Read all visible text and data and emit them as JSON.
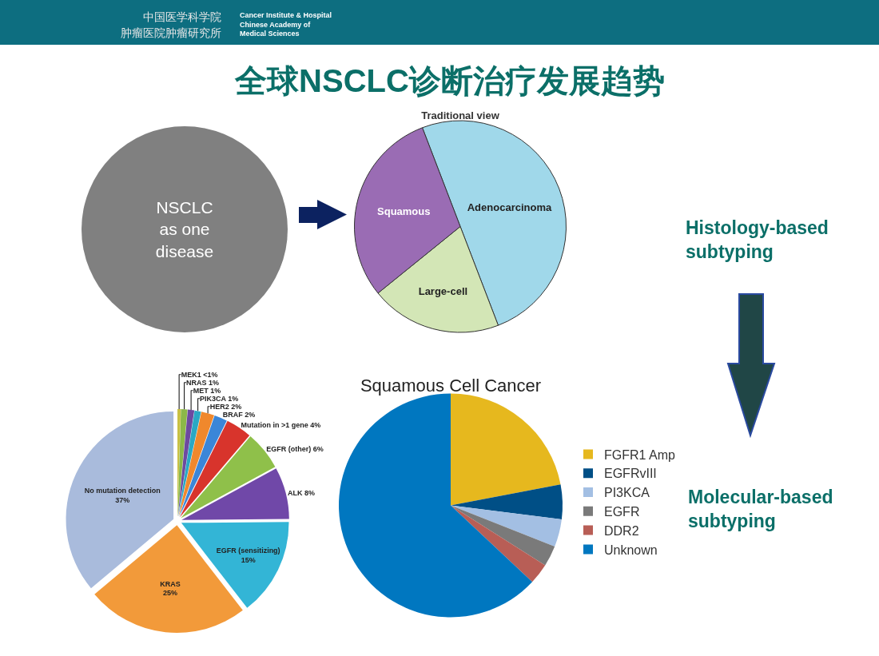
{
  "chart_data": [
    {
      "type": "other",
      "title": "全球NSCLC诊断治疗发展趋势",
      "annotations": [
        "中国医学科学院",
        "肿瘤医院肿瘤研究所",
        "Cancer Institute & Hospital\nChinese Academy of\nMedical Sciences",
        "Histology-based\nsubtyping",
        "Molecular-based\nsubtyping"
      ]
    },
    {
      "type": "pie",
      "categories": [
        "NSCLC\nas one\ndisease"
      ],
      "values": [
        100
      ],
      "colors": [
        "#808080"
      ],
      "legend": false
    },
    {
      "type": "pie",
      "title": "Traditional view",
      "categories": [
        "Adenocarcinoma",
        "Large-cell",
        "Squamous"
      ],
      "values": [
        50,
        20,
        30
      ],
      "colors": [
        "#a0d8ea",
        "#d3e6b6",
        "#9a6cb4"
      ],
      "legend": false
    },
    {
      "type": "pie",
      "categories": [
        "MEK1",
        "NRAS",
        "MET",
        "PIK3CA",
        "HER2",
        "BRAF",
        "Mutation in >1 gene",
        "EGFR (other)",
        "ALK",
        "EGFR (sensitizing)",
        "KRAS",
        "No mutation detection"
      ],
      "values": [
        0.5,
        1,
        1,
        1,
        2,
        2,
        4,
        6,
        8,
        15,
        25,
        37
      ],
      "value_labels": [
        "<1%",
        "1%",
        "1%",
        "1%",
        "2%",
        "2%",
        "4%",
        "6%",
        "8%",
        "15%",
        "25%",
        "37%"
      ],
      "colors": [
        "#c8c040",
        "#8cb848",
        "#6d4aa0",
        "#2aa8c4",
        "#f0882c",
        "#3b86d8",
        "#d8342c",
        "#8fc04a",
        "#7048a8",
        "#33b5d6",
        "#f29a3a",
        "#a9bbdc"
      ],
      "legend": false
    },
    {
      "type": "pie",
      "title": "Squamous Cell Cancer",
      "categories": [
        "FGFR1 Amp",
        "EGFRvIII",
        "PI3KCA",
        "EGFR",
        "DDR2",
        "Unknown"
      ],
      "values": [
        22,
        5,
        4,
        3,
        3,
        63
      ],
      "colors": [
        "#e6b81e",
        "#004f86",
        "#a3bfe3",
        "#7a7a7a",
        "#b85e56",
        "#0077c0"
      ],
      "legend": "right"
    }
  ]
}
